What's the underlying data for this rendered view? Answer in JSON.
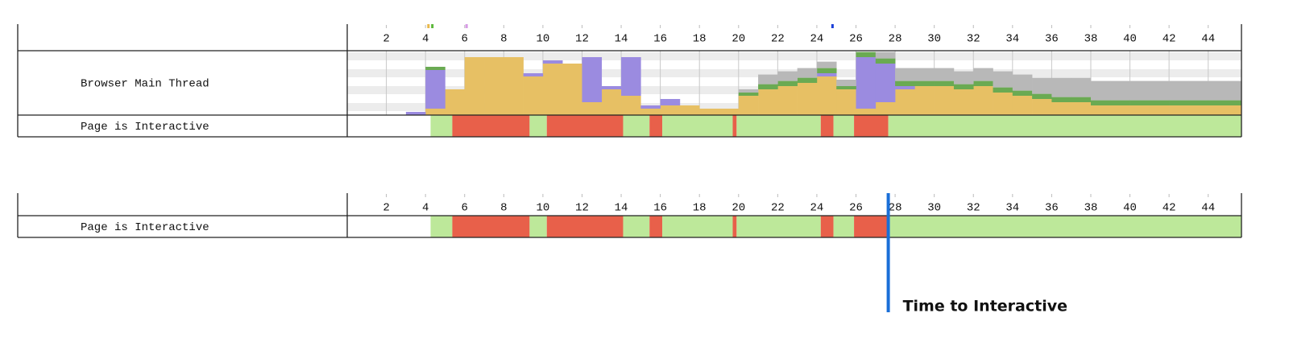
{
  "chart_data": [
    {
      "type": "timeline",
      "xlim": [
        0,
        45.7
      ],
      "xticks": [
        2,
        4,
        6,
        8,
        10,
        12,
        14,
        16,
        18,
        20,
        22,
        24,
        26,
        28,
        30,
        32,
        34,
        36,
        38,
        40,
        42,
        44
      ],
      "markers": [
        {
          "x": 4.15,
          "color": "#e8b84a"
        },
        {
          "x": 4.35,
          "color": "#5cb83a"
        },
        {
          "x": 6.1,
          "color": "#d79be6"
        },
        {
          "x": 24.8,
          "color": "#1a3fd8"
        }
      ],
      "rows": [
        {
          "label": "Browser Main Thread",
          "type": "stacked-bar",
          "ylim": [
            0,
            100
          ],
          "x": [
            0,
            1,
            2,
            3,
            4,
            5,
            6,
            7,
            8,
            9,
            10,
            11,
            12,
            13,
            14,
            15,
            16,
            17,
            18,
            19,
            20,
            21,
            22,
            23,
            24,
            25,
            26,
            27,
            28,
            29,
            30,
            31,
            32,
            33,
            34,
            35,
            36,
            37,
            38,
            39,
            40,
            41,
            42,
            43,
            44,
            45
          ],
          "series": [
            {
              "color": "#e7c064",
              "values": [
                0,
                0,
                0,
                0,
                10,
                40,
                90,
                90,
                90,
                60,
                80,
                80,
                20,
                40,
                30,
                10,
                15,
                15,
                10,
                10,
                30,
                40,
                45,
                50,
                60,
                40,
                10,
                20,
                40,
                45,
                45,
                40,
                45,
                35,
                30,
                25,
                20,
                20,
                15,
                15,
                15,
                15,
                15,
                15,
                15,
                15
              ]
            },
            {
              "color": "#9b8be0",
              "values": [
                0,
                0,
                0,
                5,
                60,
                0,
                0,
                0,
                0,
                5,
                5,
                0,
                70,
                5,
                60,
                5,
                10,
                0,
                0,
                0,
                0,
                0,
                0,
                0,
                5,
                0,
                80,
                60,
                5,
                0,
                0,
                0,
                0,
                0,
                0,
                0,
                0,
                0,
                0,
                0,
                0,
                0,
                0,
                0,
                0,
                0
              ]
            },
            {
              "color": "#6aaa52",
              "values": [
                0,
                0,
                0,
                0,
                5,
                0,
                0,
                0,
                0,
                0,
                0,
                0,
                0,
                0,
                0,
                0,
                0,
                0,
                0,
                0,
                5,
                8,
                8,
                8,
                8,
                5,
                8,
                8,
                8,
                8,
                8,
                8,
                8,
                8,
                8,
                8,
                8,
                8,
                8,
                8,
                8,
                8,
                8,
                8,
                8,
                8
              ]
            },
            {
              "color": "#b8b8b8",
              "values": [
                0,
                0,
                0,
                0,
                0,
                0,
                0,
                0,
                0,
                0,
                0,
                0,
                0,
                0,
                0,
                0,
                0,
                0,
                0,
                0,
                5,
                15,
                15,
                15,
                10,
                10,
                0,
                10,
                20,
                20,
                20,
                20,
                20,
                25,
                25,
                25,
                30,
                30,
                30,
                30,
                30,
                30,
                30,
                30,
                30,
                30
              ]
            }
          ]
        },
        {
          "label": "Page is Interactive",
          "type": "intervals",
          "segments": [
            {
              "start": 4.26,
              "end": 5.37,
              "color": "#bde89a"
            },
            {
              "start": 5.37,
              "end": 9.32,
              "color": "#e8604a"
            },
            {
              "start": 9.32,
              "end": 10.2,
              "color": "#bde89a"
            },
            {
              "start": 10.2,
              "end": 14.1,
              "color": "#e8604a"
            },
            {
              "start": 14.1,
              "end": 15.45,
              "color": "#bde89a"
            },
            {
              "start": 15.45,
              "end": 16.1,
              "color": "#e8604a"
            },
            {
              "start": 16.1,
              "end": 19.7,
              "color": "#bde89a"
            },
            {
              "start": 19.7,
              "end": 19.9,
              "color": "#e8604a"
            },
            {
              "start": 19.9,
              "end": 24.2,
              "color": "#bde89a"
            },
            {
              "start": 24.2,
              "end": 24.85,
              "color": "#e8604a"
            },
            {
              "start": 24.85,
              "end": 25.9,
              "color": "#bde89a"
            },
            {
              "start": 25.9,
              "end": 27.65,
              "color": "#e8604a"
            },
            {
              "start": 27.65,
              "end": 45.7,
              "color": "#bde89a"
            }
          ]
        }
      ]
    },
    {
      "type": "timeline",
      "xlim": [
        0,
        45.7
      ],
      "xticks": [
        2,
        4,
        6,
        8,
        10,
        12,
        14,
        16,
        18,
        20,
        22,
        24,
        26,
        28,
        30,
        32,
        34,
        36,
        38,
        40,
        42,
        44
      ],
      "rows": [
        {
          "label": "Page is Interactive",
          "type": "intervals",
          "segments": [
            {
              "start": 4.26,
              "end": 5.37,
              "color": "#bde89a"
            },
            {
              "start": 5.37,
              "end": 9.32,
              "color": "#e8604a"
            },
            {
              "start": 9.32,
              "end": 10.2,
              "color": "#bde89a"
            },
            {
              "start": 10.2,
              "end": 14.1,
              "color": "#e8604a"
            },
            {
              "start": 14.1,
              "end": 15.45,
              "color": "#bde89a"
            },
            {
              "start": 15.45,
              "end": 16.1,
              "color": "#e8604a"
            },
            {
              "start": 16.1,
              "end": 19.7,
              "color": "#bde89a"
            },
            {
              "start": 19.7,
              "end": 19.9,
              "color": "#e8604a"
            },
            {
              "start": 19.9,
              "end": 24.2,
              "color": "#bde89a"
            },
            {
              "start": 24.2,
              "end": 24.85,
              "color": "#e8604a"
            },
            {
              "start": 24.85,
              "end": 25.9,
              "color": "#bde89a"
            },
            {
              "start": 25.9,
              "end": 27.65,
              "color": "#e8604a"
            },
            {
              "start": 27.65,
              "end": 45.7,
              "color": "#bde89a"
            }
          ]
        }
      ],
      "annotation": {
        "text": "Time to Interactive",
        "x": 27.65,
        "color": "#1a6fd8"
      }
    }
  ]
}
